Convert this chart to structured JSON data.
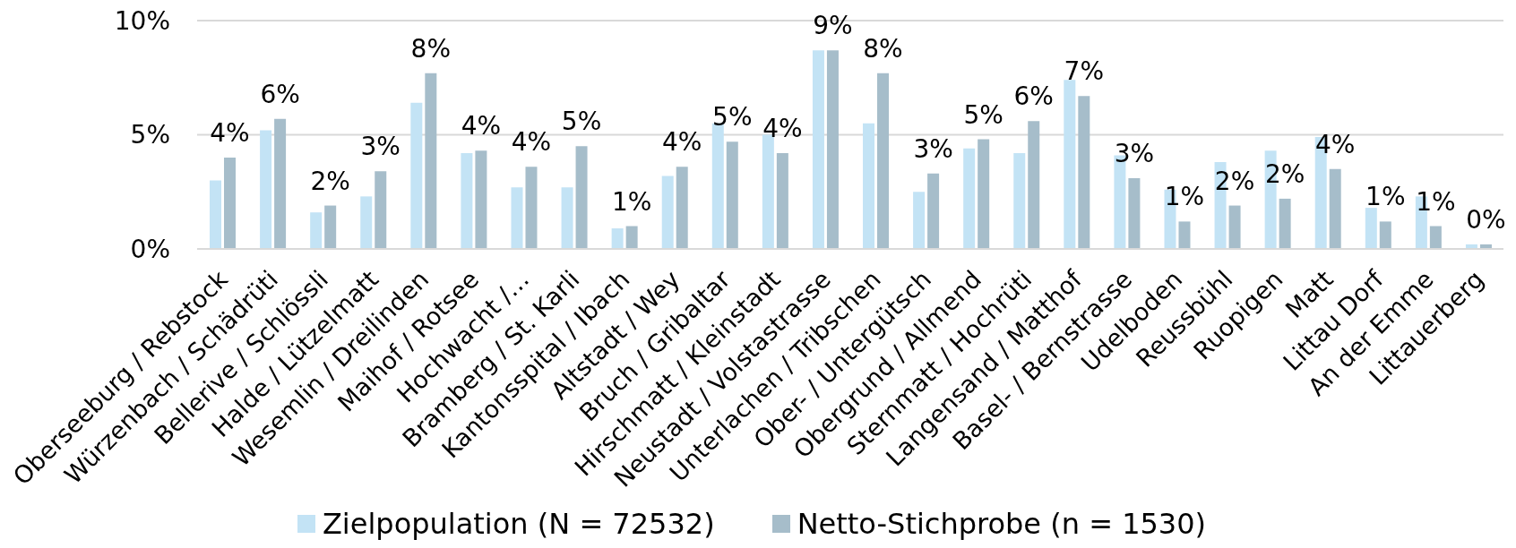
{
  "chart_data": {
    "type": "bar",
    "categories": [
      "Oberseeburg / Rebstock",
      "Würzenbach / Schädrüti",
      "Bellerive / Schlössli",
      "Halde / Lützelmatt",
      "Wesemlin / Dreilinden",
      "Maihof / Rotsee",
      "Hochwacht /…",
      "Bramberg / St. Karli",
      "Kantonsspital / Ibach",
      "Altstadt / Wey",
      "Bruch / Gribaltar",
      "Hirschmatt / Kleinstadt",
      "Neustadt / Volstastrasse",
      "Unterlachen / Tribschen",
      "Ober- / Untergütsch",
      "Obergrund / Allmend",
      "Sternmatt / Hochrüti",
      "Langensand / Matthof",
      "Basel- / Bernstrasse",
      "Udelboden",
      "Reussbühl",
      "Ruopigen",
      "Matt",
      "Littau Dorf",
      "An der Emme",
      "Littauerberg"
    ],
    "series": [
      {
        "name": "Zielpopulation (N = 72532)",
        "color": "#c3e3f5",
        "values": [
          3.0,
          5.2,
          1.6,
          2.3,
          6.4,
          4.2,
          2.7,
          2.7,
          0.9,
          3.2,
          5.5,
          5.0,
          8.7,
          5.5,
          2.5,
          4.4,
          4.2,
          7.4,
          4.1,
          2.6,
          3.8,
          4.3,
          4.9,
          1.8,
          2.3,
          0.2
        ]
      },
      {
        "name": "Netto-Stichprobe (n = 1530)",
        "color": "#a6bdca",
        "values": [
          4.0,
          5.7,
          1.9,
          3.4,
          7.7,
          4.3,
          3.6,
          4.5,
          1.0,
          3.6,
          4.7,
          4.2,
          8.7,
          7.7,
          3.3,
          4.8,
          5.6,
          6.7,
          3.1,
          1.2,
          1.9,
          2.2,
          3.5,
          1.2,
          1.0,
          0.2
        ],
        "value_labels": [
          "4%",
          "6%",
          "2%",
          "3%",
          "8%",
          "4%",
          "4%",
          "5%",
          "1%",
          "4%",
          "5%",
          "4%",
          "9%",
          "8%",
          "3%",
          "5%",
          "6%",
          "7%",
          "3%",
          "1%",
          "2%",
          "2%",
          "4%",
          "1%",
          "1%",
          "0%"
        ]
      }
    ],
    "ylim": [
      0,
      10
    ],
    "yticks": [
      {
        "value": 0,
        "label": "0%"
      },
      {
        "value": 5,
        "label": "5%"
      },
      {
        "value": 10,
        "label": "10%"
      }
    ],
    "grid": "y",
    "legend": "bottom"
  }
}
